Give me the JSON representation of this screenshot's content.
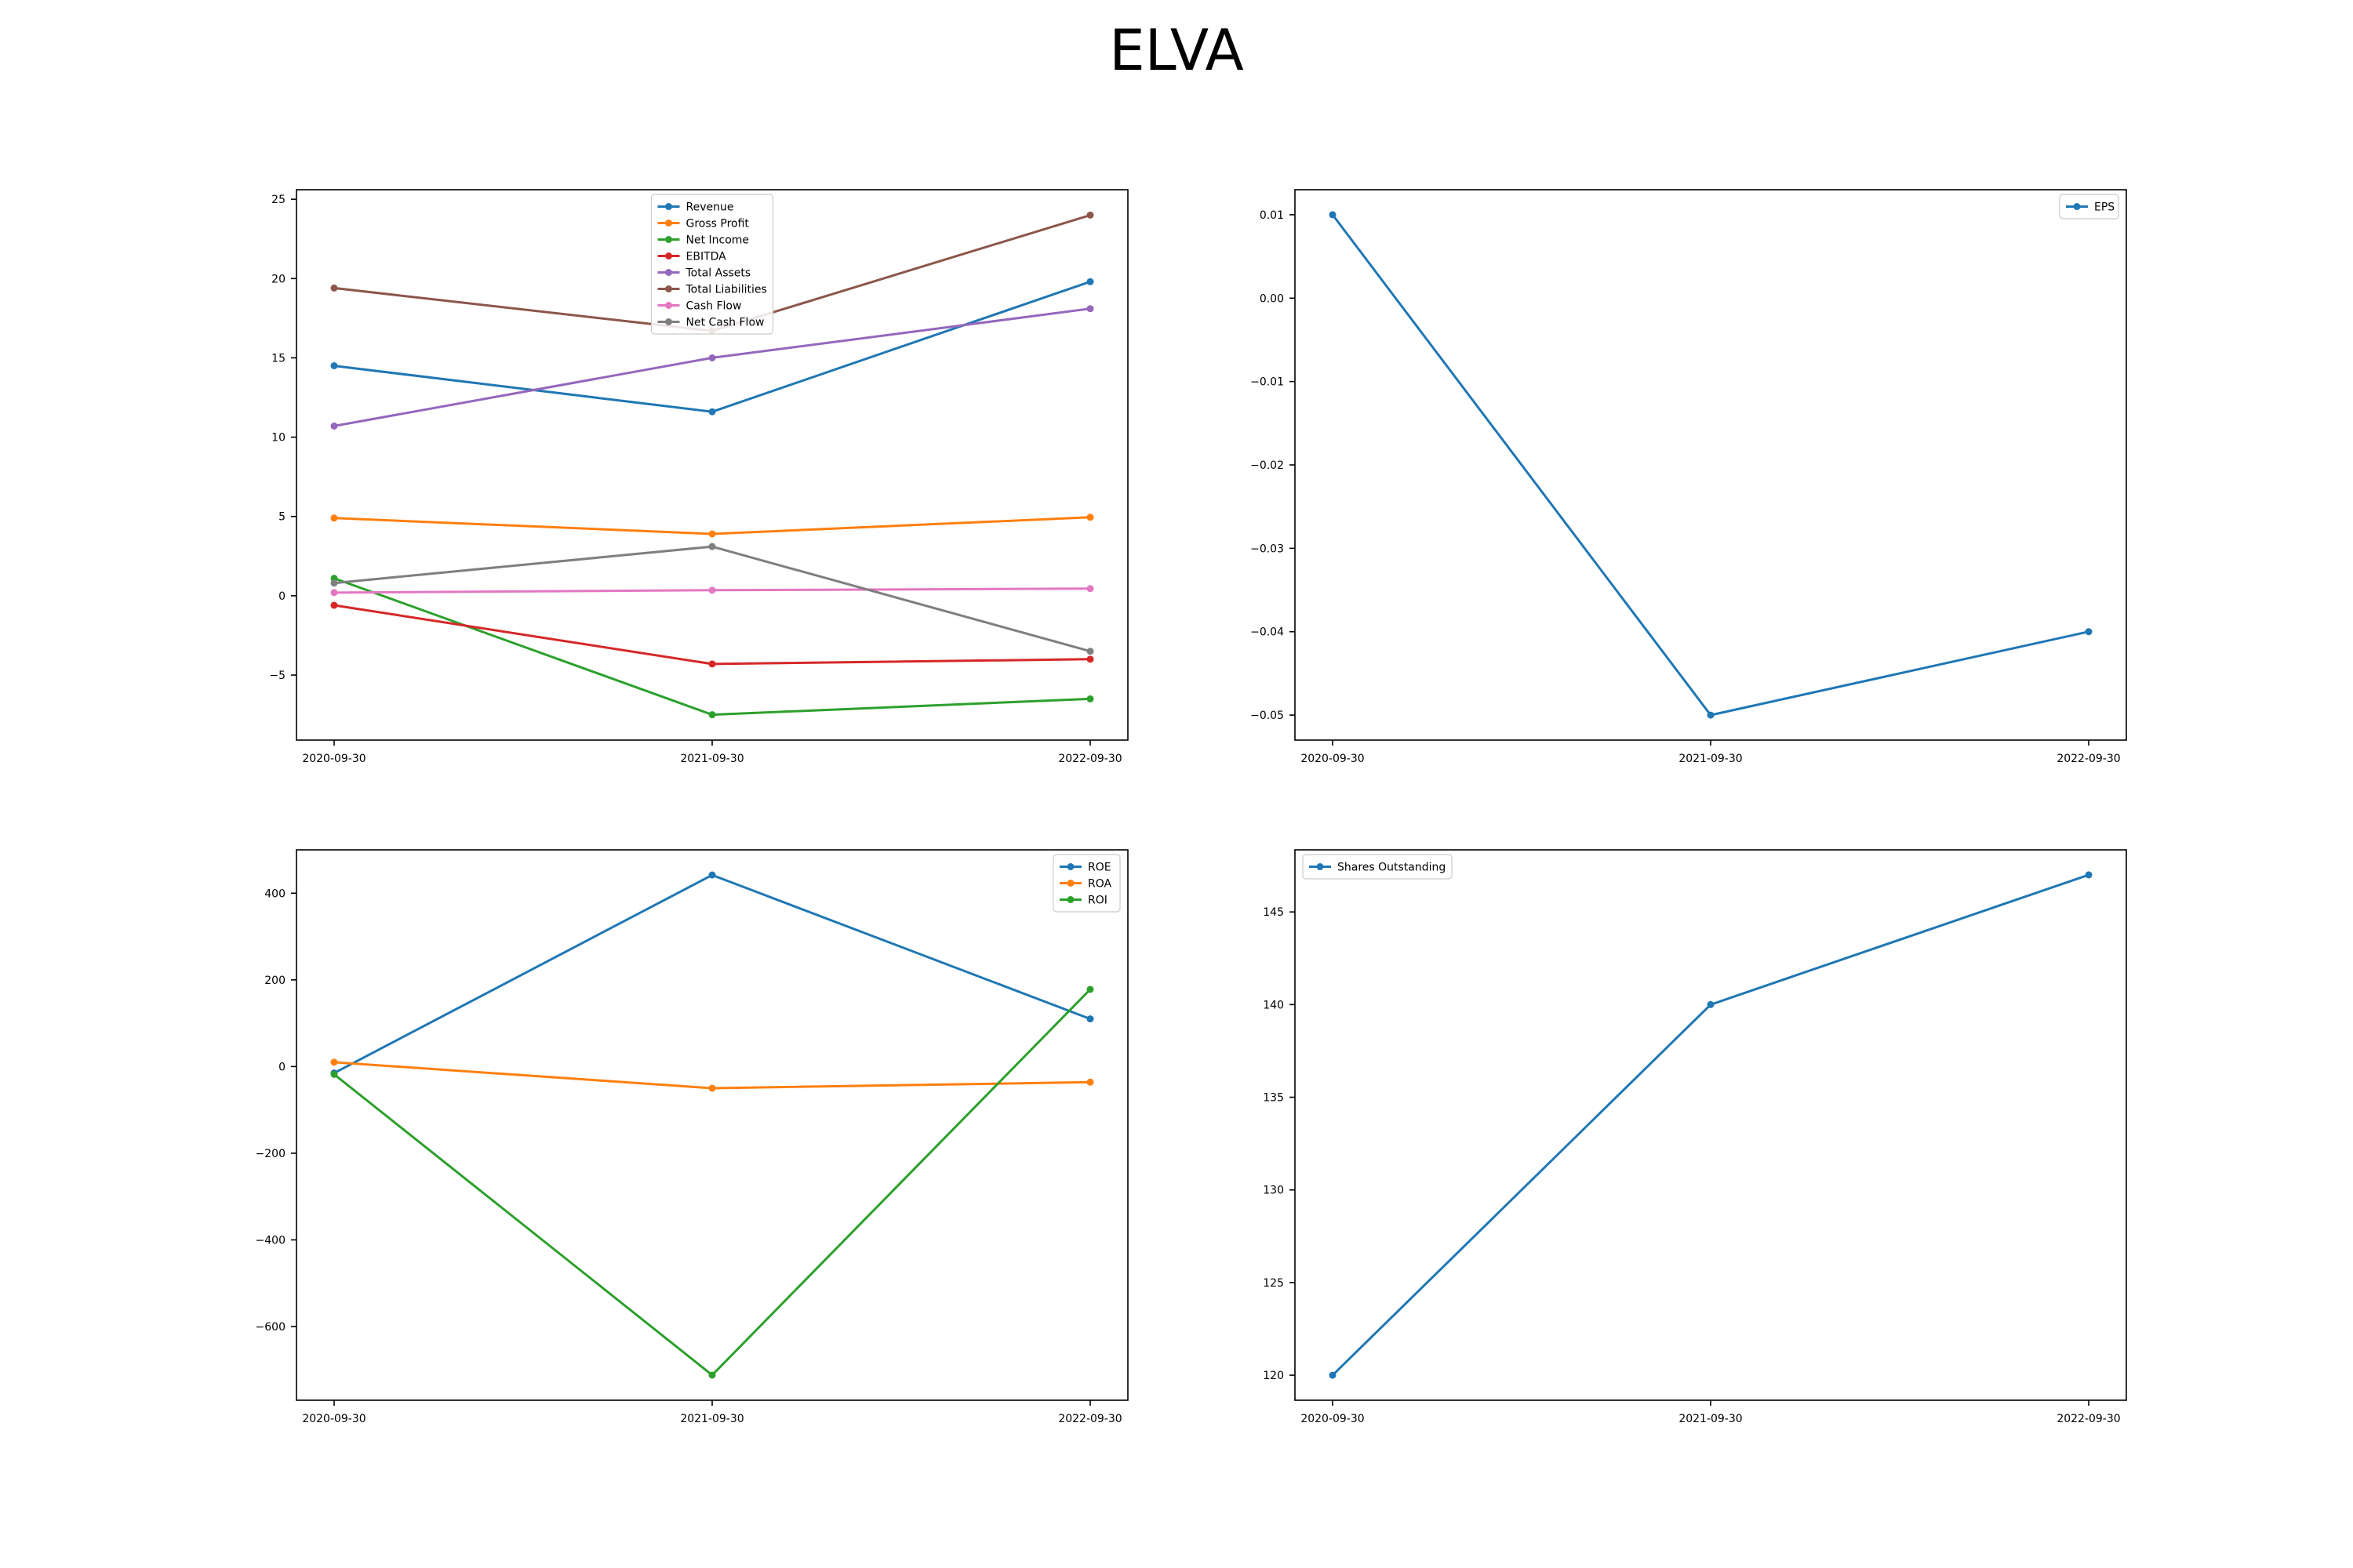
{
  "title": "ELVA",
  "chart_data": [
    {
      "type": "line",
      "x": [
        "2020-09-30",
        "2021-09-30",
        "2022-09-30"
      ],
      "ylim": [
        -9.1,
        25.6
      ],
      "yticks": [
        -5,
        0,
        5,
        10,
        15,
        20,
        25
      ],
      "ytick_labels": [
        "−5",
        "0",
        "5",
        "10",
        "15",
        "20",
        "25"
      ],
      "legend": "upper center",
      "grid": false,
      "series": [
        {
          "name": "Revenue",
          "color": "#1f77b4",
          "values": [
            14.5,
            11.6,
            19.8
          ]
        },
        {
          "name": "Gross Profit",
          "color": "#ff7f0e",
          "values": [
            4.9,
            3.9,
            4.95
          ]
        },
        {
          "name": "Net Income",
          "color": "#2ca02c",
          "values": [
            1.1,
            -7.5,
            -6.5
          ]
        },
        {
          "name": "EBITDA",
          "color": "#d62728",
          "values": [
            -0.6,
            -4.3,
            -4.0
          ]
        },
        {
          "name": "Total Assets",
          "color": "#9467bd",
          "values": [
            10.7,
            15.0,
            18.1
          ]
        },
        {
          "name": "Total Liabilities",
          "color": "#8c564b",
          "values": [
            19.4,
            16.7,
            24.0
          ]
        },
        {
          "name": "Cash Flow",
          "color": "#e377c2",
          "values": [
            0.2,
            0.35,
            0.45
          ]
        },
        {
          "name": "Net Cash Flow",
          "color": "#7f7f7f",
          "values": [
            0.8,
            3.1,
            -3.5
          ]
        }
      ]
    },
    {
      "type": "line",
      "x": [
        "2020-09-30",
        "2021-09-30",
        "2022-09-30"
      ],
      "ylim": [
        -0.053,
        0.013
      ],
      "yticks": [
        0.01,
        0.0,
        -0.01,
        -0.02,
        -0.03,
        -0.04,
        -0.05
      ],
      "ytick_labels": [
        "0.01",
        "0.00",
        "−0.01",
        "−0.02",
        "−0.03",
        "−0.04",
        "−0.05"
      ],
      "legend": "upper right",
      "grid": false,
      "series": [
        {
          "name": "EPS",
          "color": "#1f77b4",
          "values": [
            0.01,
            -0.05,
            -0.04
          ]
        }
      ]
    },
    {
      "type": "line",
      "x": [
        "2020-09-30",
        "2021-09-30",
        "2022-09-30"
      ],
      "ylim": [
        -770,
        500
      ],
      "yticks": [
        400,
        200,
        0,
        -200,
        -400,
        -600
      ],
      "ytick_labels": [
        "400",
        "200",
        "0",
        "−200",
        "−400",
        "−600"
      ],
      "legend": "upper right",
      "grid": false,
      "series": [
        {
          "name": "ROE",
          "color": "#1f77b4",
          "values": [
            -15,
            442,
            110
          ]
        },
        {
          "name": "ROA",
          "color": "#ff7f0e",
          "values": [
            10,
            -50,
            -36
          ]
        },
        {
          "name": "ROI",
          "color": "#2ca02c",
          "values": [
            -18,
            -712,
            178
          ]
        }
      ]
    },
    {
      "type": "line",
      "x": [
        "2020-09-30",
        "2021-09-30",
        "2022-09-30"
      ],
      "ylim": [
        118.65,
        148.35
      ],
      "yticks": [
        145,
        140,
        135,
        130,
        125,
        120
      ],
      "ytick_labels": [
        "145",
        "140",
        "135",
        "130",
        "125",
        "120"
      ],
      "legend": "upper left",
      "grid": false,
      "series": [
        {
          "name": "Shares Outstanding",
          "color": "#1f77b4",
          "values": [
            120,
            140,
            147
          ]
        }
      ]
    }
  ]
}
